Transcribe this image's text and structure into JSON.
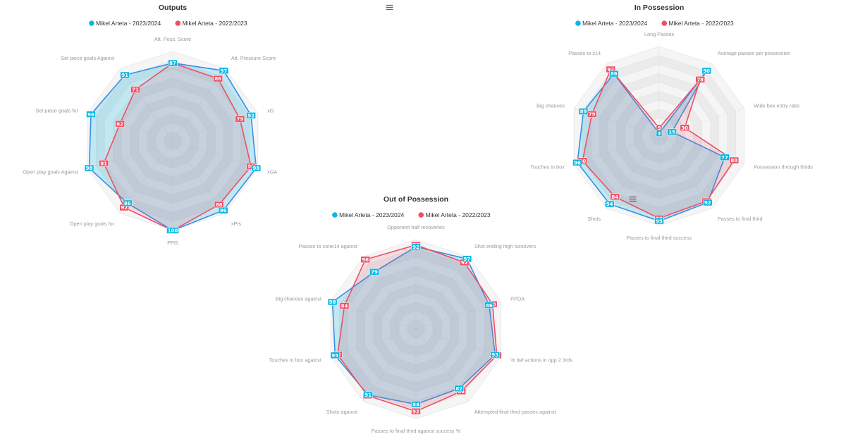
{
  "colors": {
    "series_a": "#08b8e4",
    "series_a_line": "#3b8ee6",
    "series_b": "#f04e64",
    "grid_band_light": "#f5f5f5",
    "grid_band_dark": "#ebebeb",
    "grid_line": "#e2e2e2"
  },
  "icons": [
    "hamburger-menu-icon"
  ],
  "chart_data": [
    {
      "type": "radar",
      "title": "Outputs",
      "legend_position": "top-center",
      "range": [
        0,
        100
      ],
      "categories": [
        "Att. Poss. Score",
        "Att. Pressure Score",
        "xG",
        "xGA",
        "xPts",
        "PPG",
        "Open play goals for",
        "Open play goals Against",
        "Set piece goals for",
        "Set piece goals Against"
      ],
      "series": [
        {
          "name": "Mikel Arteta - 2023/2024",
          "values": [
            87,
            97,
            92,
            98,
            96,
            100,
            86,
            98,
            96,
            91
          ]
        },
        {
          "name": "Mikel Arteta - 2022/2023",
          "values": [
            87,
            86,
            79,
            92,
            88,
            100,
            92,
            81,
            62,
            71
          ]
        }
      ]
    },
    {
      "type": "radar",
      "title": "In Possession",
      "legend_position": "top-center",
      "range": [
        0,
        100
      ],
      "categories": [
        "Long Passes",
        "Average passes per possession",
        "Wide box entry ratio",
        "Possession through thirds",
        "Passes to final third",
        "Passes to final third success",
        "Shots",
        "Touches in box",
        "Big chances",
        "Passes to z14"
      ],
      "series": [
        {
          "name": "Mikel Arteta - 2023/2024",
          "values": [
            3,
            90,
            15,
            77,
            92,
            95,
            94,
            96,
            89,
            86
          ]
        },
        {
          "name": "Mikel Arteta - 2022/2023",
          "values": [
            9,
            78,
            30,
            88,
            90,
            92,
            84,
            90,
            79,
            92
          ]
        }
      ]
    },
    {
      "type": "radar",
      "title": "Out of Possession",
      "legend_position": "top-center",
      "range": [
        0,
        100
      ],
      "categories": [
        "Opponent half recoveries",
        "Shot ending high turnovers",
        "PPDA",
        "% def actions in opp 2 3rds",
        "Attempted final third passes against",
        "Passes to final third against success %",
        "Shots against",
        "Touches in box against",
        "Big chances against",
        "Passes to zone14 against"
      ],
      "series": [
        {
          "name": "Mikel Arteta - 2023/2024",
          "values": [
            92,
            97,
            86,
            93,
            82,
            84,
            91,
            95,
            98,
            79
          ]
        },
        {
          "name": "Mikel Arteta - 2022/2023",
          "values": [
            94,
            92,
            90,
            95,
            86,
            92,
            92,
            92,
            84,
            96
          ]
        }
      ]
    }
  ]
}
